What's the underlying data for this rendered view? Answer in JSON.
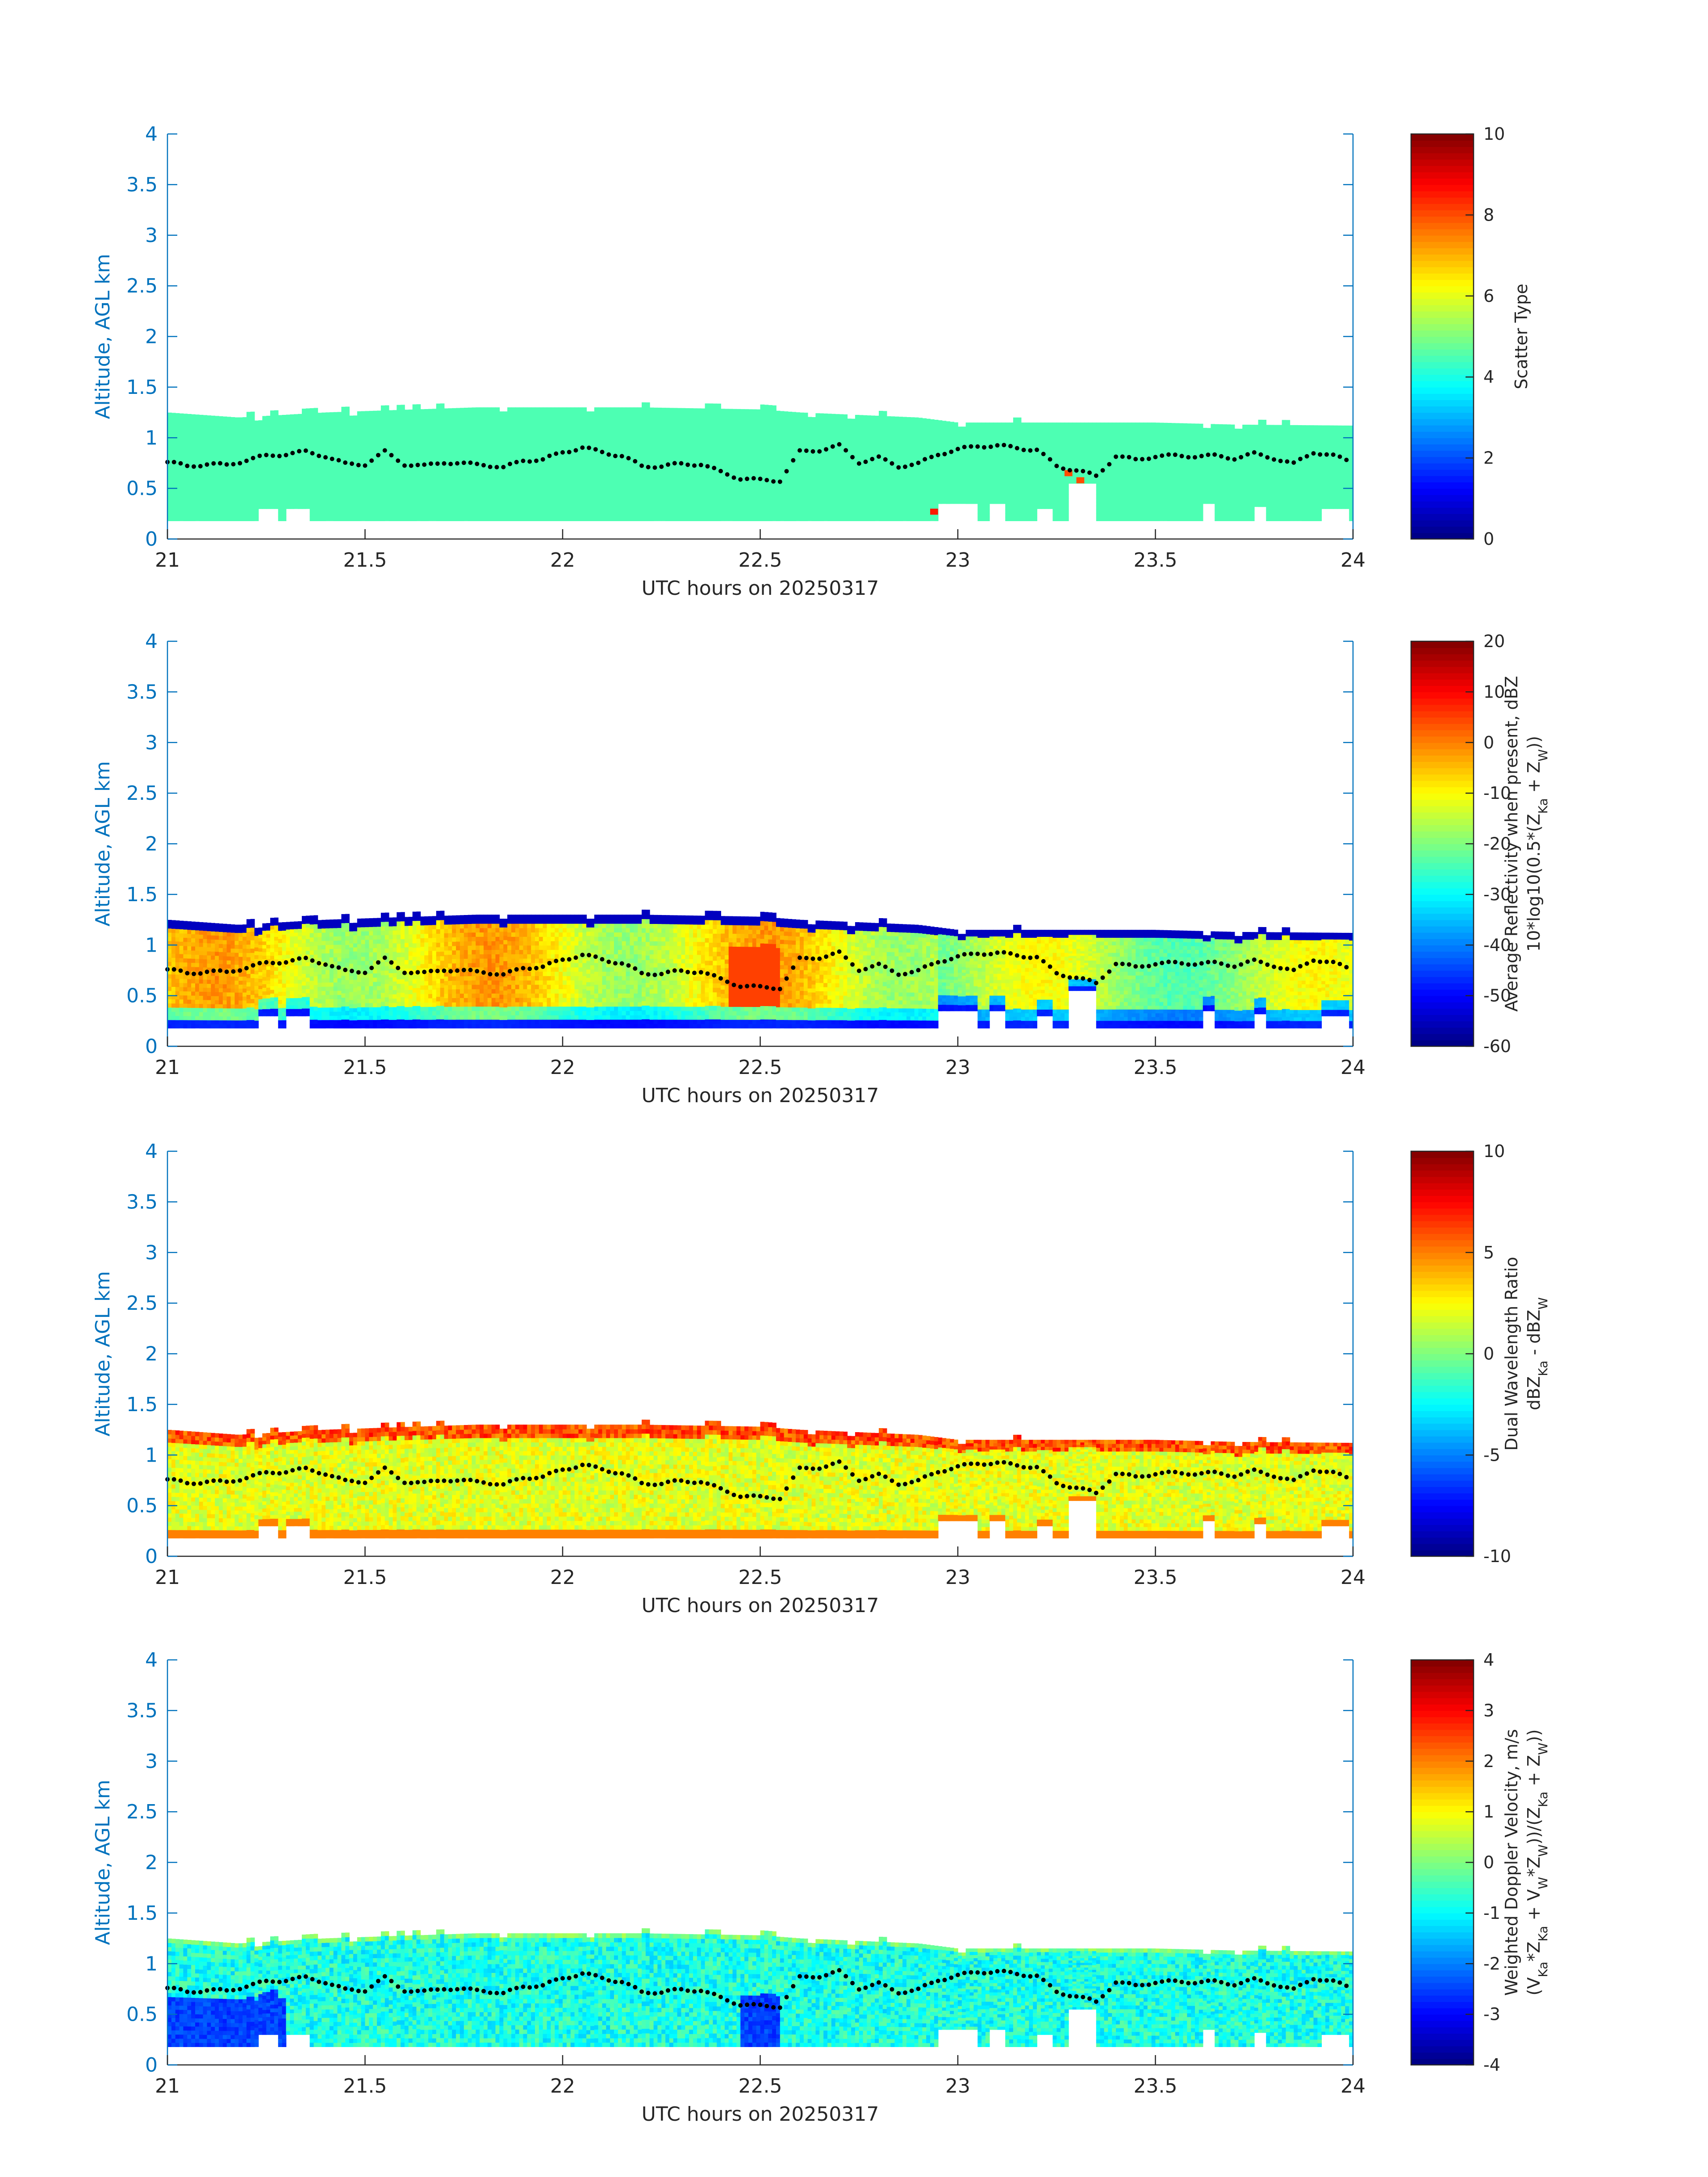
{
  "figure": {
    "xlabel": "UTC hours on 20250317",
    "ylabel": "Altitude, AGL km",
    "xticks": [
      "21",
      "21.5",
      "22",
      "22.5",
      "23",
      "23.5",
      "24"
    ],
    "yticks": [
      "0",
      "0.5",
      "1",
      "1.5",
      "2",
      "2.5",
      "3",
      "3.5",
      "4"
    ],
    "xlim": [
      21,
      24
    ],
    "ylim": [
      0,
      4
    ],
    "axis_color": "#0072bd",
    "marker_color": "#000000"
  },
  "chart_data": [
    {
      "type": "heatmap",
      "xlabel": "UTC hours on 20250317",
      "ylabel": "Altitude, AGL km",
      "colorbar": {
        "label_lines": [
          "Scatter Type"
        ],
        "range": [
          0,
          10
        ],
        "ticks": [
          "0",
          "2",
          "4",
          "6",
          "8",
          "10"
        ]
      },
      "field": "scatter_type",
      "cloud_top_km": 1.25,
      "dominant_value": 4.5,
      "outliers": [
        {
          "x": 22.93,
          "y": 0.24,
          "value": 8.5
        },
        {
          "x": 23.27,
          "y": 0.62,
          "value": 8.0
        },
        {
          "x": 23.3,
          "y": 0.55,
          "value": 8.0
        }
      ]
    },
    {
      "type": "heatmap",
      "xlabel": "UTC hours on 20250317",
      "ylabel": "Altitude, AGL km",
      "colorbar": {
        "label_lines": [
          "Average Reflectivity when present, dBZ",
          "10*log10(0.5*(Z",
          "Ka",
          " + Z",
          "W",
          "))"
        ],
        "range": [
          -60,
          20
        ],
        "ticks": [
          "-60",
          "-50",
          "-40",
          "-30",
          "-20",
          "-10",
          "0",
          "10",
          "20"
        ]
      },
      "field": "reflectivity_dbz",
      "typical_core_value": -10,
      "max_core_value": 5,
      "edge_value": -55
    },
    {
      "type": "heatmap",
      "xlabel": "UTC hours on 20250317",
      "ylabel": "Altitude, AGL km",
      "colorbar": {
        "label_lines": [
          "Dual Wavelength Ratio",
          "dBZ",
          "Ka",
          " - dBZ",
          "W"
        ],
        "range": [
          -10,
          10
        ],
        "ticks": [
          "-10",
          "-5",
          "0",
          "5",
          "10"
        ]
      },
      "field": "dwr_db",
      "typical_value": 2,
      "top_value": 6
    },
    {
      "type": "heatmap",
      "xlabel": "UTC hours on 20250317",
      "ylabel": "Altitude, AGL km",
      "colorbar": {
        "label_lines": [
          "Weighted Doppler Velocity, m/s",
          "(V",
          "Ka",
          "*Z",
          "Ka",
          " + V",
          "W",
          "*Z",
          "W",
          "))/(Z",
          "Ka",
          " + Z",
          "W",
          "))"
        ],
        "range": [
          -4,
          4
        ],
        "ticks": [
          "-4",
          "-3",
          "-2",
          "-1",
          "0",
          "1",
          "2",
          "3",
          "4"
        ]
      },
      "field": "doppler_velocity_ms",
      "typical_value": -0.8,
      "low_value": -2.5
    }
  ],
  "cloud": {
    "base_km": 0.18,
    "top_profile": [
      [
        21.0,
        1.25
      ],
      [
        21.18,
        1.2
      ],
      [
        21.4,
        1.25
      ],
      [
        21.78,
        1.3
      ],
      [
        22.2,
        1.3
      ],
      [
        22.5,
        1.28
      ],
      [
        22.6,
        1.25
      ],
      [
        22.9,
        1.2
      ],
      [
        23.0,
        1.15
      ],
      [
        23.5,
        1.15
      ],
      [
        23.7,
        1.13
      ],
      [
        24.0,
        1.12
      ]
    ],
    "gaps": [
      [
        21.23,
        21.28,
        0.3
      ],
      [
        21.3,
        21.36,
        0.3
      ],
      [
        22.95,
        23.05,
        0.35
      ],
      [
        23.08,
        23.12,
        0.35
      ],
      [
        23.2,
        23.24,
        0.3
      ],
      [
        23.28,
        23.35,
        0.55
      ],
      [
        23.62,
        23.65,
        0.35
      ],
      [
        23.75,
        23.78,
        0.32
      ],
      [
        23.92,
        23.99,
        0.3
      ]
    ]
  },
  "boundary_layer_marker": {
    "x": [
      21.0,
      21.05,
      21.1,
      21.15,
      21.2,
      21.25,
      21.3,
      21.35,
      21.4,
      21.45,
      21.5,
      21.55,
      21.6,
      21.65,
      21.7,
      21.75,
      21.8,
      21.85,
      21.9,
      21.95,
      22.0,
      22.05,
      22.1,
      22.15,
      22.2,
      22.25,
      22.3,
      22.35,
      22.4,
      22.45,
      22.5,
      22.55,
      22.6,
      22.65,
      22.7,
      22.75,
      22.8,
      22.85,
      22.9,
      22.95,
      23.0,
      23.05,
      23.1,
      23.15,
      23.2,
      23.25,
      23.3,
      23.35,
      23.4,
      23.45,
      23.5,
      23.55,
      23.6,
      23.65,
      23.7,
      23.75,
      23.8,
      23.85,
      23.9,
      23.95,
      24.0
    ],
    "y": [
      0.76,
      0.72,
      0.74,
      0.73,
      0.78,
      0.82,
      0.84,
      0.86,
      0.82,
      0.74,
      0.74,
      0.86,
      0.74,
      0.72,
      0.76,
      0.74,
      0.74,
      0.7,
      0.78,
      0.78,
      0.86,
      0.9,
      0.86,
      0.82,
      0.72,
      0.72,
      0.74,
      0.74,
      0.66,
      0.6,
      0.58,
      0.58,
      0.86,
      0.88,
      0.92,
      0.76,
      0.8,
      0.72,
      0.74,
      0.84,
      0.88,
      0.92,
      0.92,
      0.9,
      0.88,
      0.72,
      0.68,
      0.62,
      0.82,
      0.78,
      0.82,
      0.82,
      0.82,
      0.82,
      0.8,
      0.84,
      0.8,
      0.74,
      0.86,
      0.82,
      0.76
    ]
  }
}
